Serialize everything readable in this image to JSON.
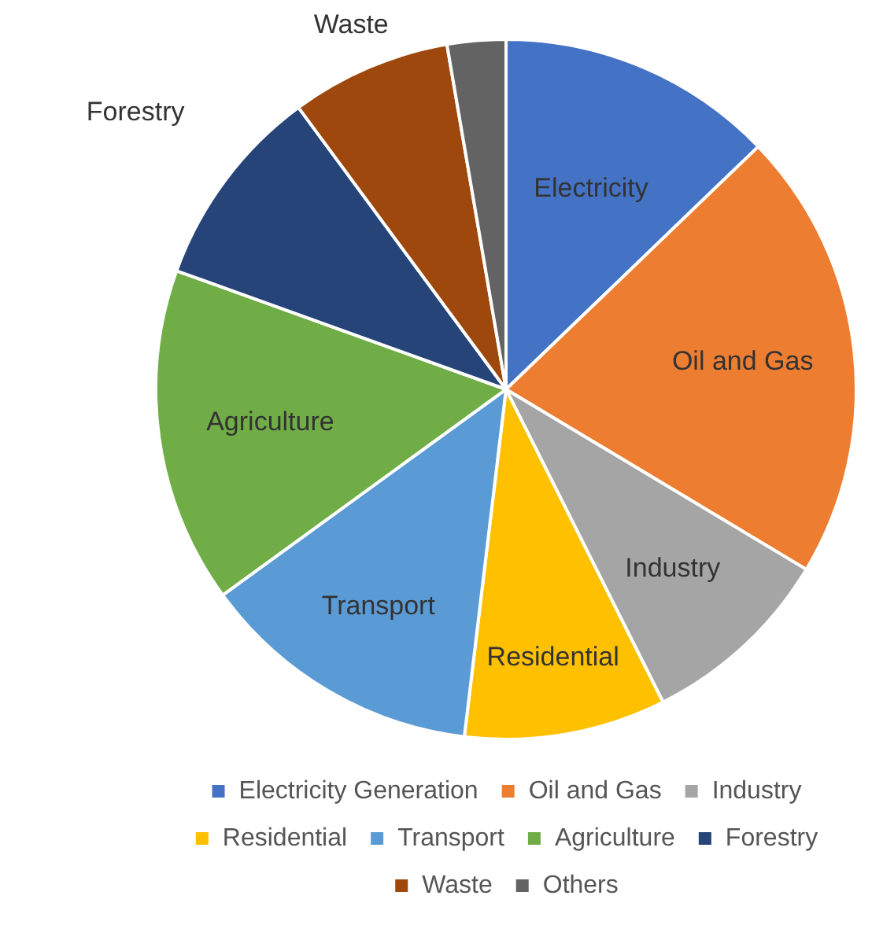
{
  "chart_data": {
    "type": "pie",
    "categories": [
      "Electricity Generation",
      "Oil and Gas",
      "Industry",
      "Residential",
      "Transport",
      "Agriculture",
      "Forestry",
      "Waste",
      "Others"
    ],
    "values": [
      12.8,
      20.8,
      9,
      9.3,
      13.1,
      15.5,
      9.4,
      7.4,
      2.7
    ],
    "colors": [
      "#4472c4",
      "#ed7d31",
      "#a5a5a5",
      "#ffc000",
      "#5b9bd5",
      "#70ad47",
      "#264478",
      "#9e480e",
      "#636363"
    ],
    "annotations": [
      "Electricity",
      "Oil and Gas",
      "Industry",
      "Residential",
      "Transport",
      "Agriculture",
      "Forestry",
      "Waste"
    ],
    "legend": "bottom"
  }
}
